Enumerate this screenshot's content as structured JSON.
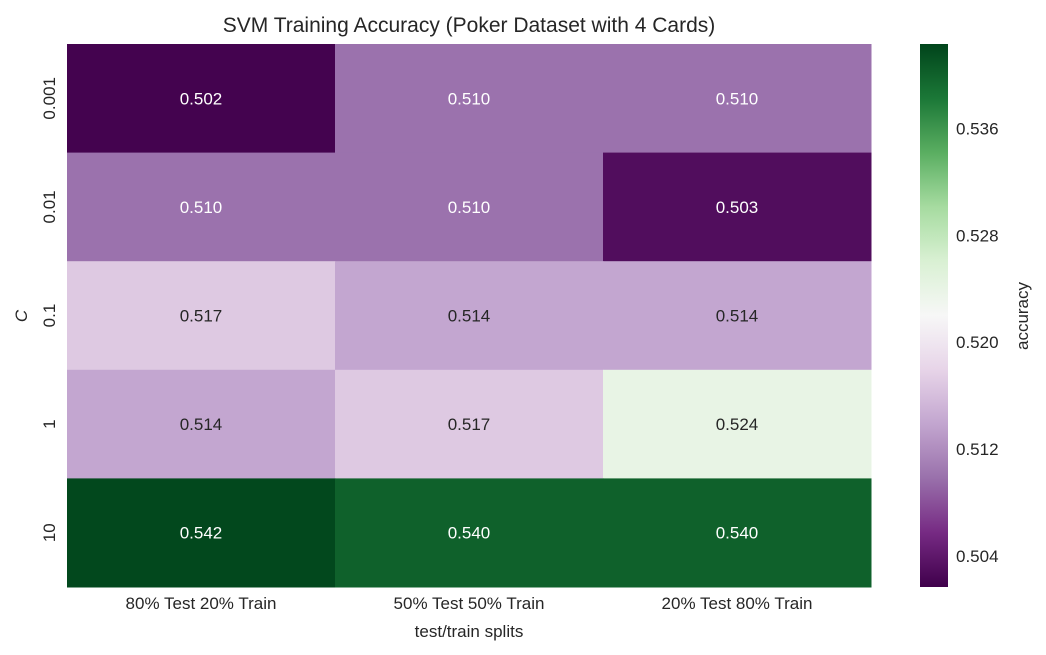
{
  "chart_data": {
    "type": "heatmap",
    "title": "SVM Training Accuracy (Poker Dataset with 4 Cards)",
    "xlabel": "test/train splits",
    "ylabel": "C",
    "x_categories": [
      "80% Test 20% Train",
      "50% Test 50% Train",
      "20% Test 80% Train"
    ],
    "y_categories": [
      "0.001",
      "0.01",
      "0.1",
      "1",
      "10"
    ],
    "values": [
      [
        0.502,
        0.51,
        0.51
      ],
      [
        0.51,
        0.51,
        0.503
      ],
      [
        0.517,
        0.514,
        0.514
      ],
      [
        0.514,
        0.517,
        0.524
      ],
      [
        0.542,
        0.54,
        0.54
      ]
    ],
    "value_labels": [
      [
        "0.502",
        "0.510",
        "0.510"
      ],
      [
        "0.510",
        "0.510",
        "0.503"
      ],
      [
        "0.517",
        "0.514",
        "0.514"
      ],
      [
        "0.514",
        "0.517",
        "0.524"
      ],
      [
        "0.542",
        "0.540",
        "0.540"
      ]
    ],
    "colormap": "PRGn",
    "vmin": 0.5017,
    "vmax": 0.5423,
    "colorbar": {
      "label": "accuracy",
      "ticks": [
        0.504,
        0.512,
        0.52,
        0.528,
        0.536
      ],
      "tick_labels": [
        "0.504",
        "0.512",
        "0.520",
        "0.528",
        "0.536"
      ]
    },
    "colors": {
      "low": "#40004b",
      "mid": "#f7f7f7",
      "high": "#00441b",
      "text_dark": "#262626",
      "text_light": "#ffffff"
    }
  }
}
